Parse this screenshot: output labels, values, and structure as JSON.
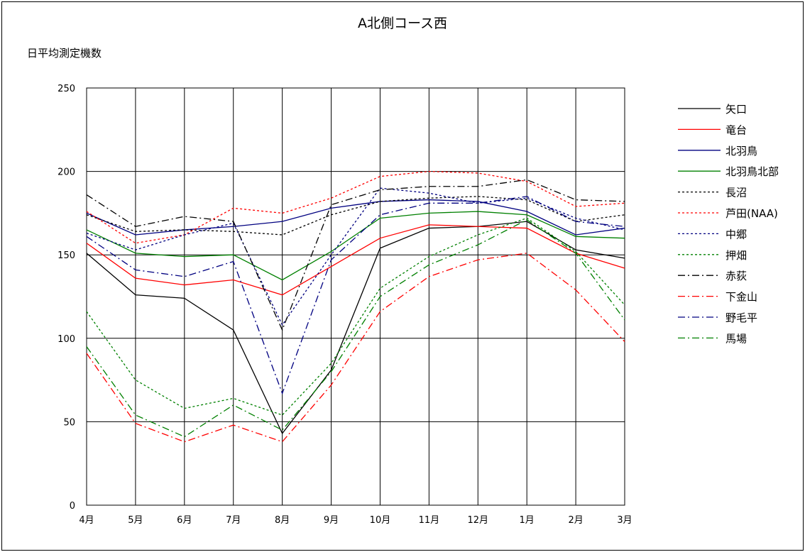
{
  "chart_data": {
    "type": "line",
    "title": "A北側コース西",
    "ylabel": "日平均測定機数",
    "xlabel": "",
    "ylim": [
      0,
      250
    ],
    "yticks": [
      0,
      50,
      100,
      150,
      200,
      250
    ],
    "grid": true,
    "legend_position": "right",
    "categories": [
      "4月",
      "5月",
      "6月",
      "7月",
      "8月",
      "9月",
      "10月",
      "11月",
      "12月",
      "1月",
      "2月",
      "3月"
    ],
    "series": [
      {
        "name": "矢口",
        "color": "#000000",
        "dash": "solid",
        "values": [
          151,
          126,
          124,
          105,
          43,
          81,
          154,
          166,
          167,
          170,
          153,
          148
        ]
      },
      {
        "name": "竜台",
        "color": "#ff0000",
        "dash": "solid",
        "values": [
          157,
          136,
          132,
          135,
          126,
          143,
          160,
          168,
          167,
          166,
          151,
          142
        ]
      },
      {
        "name": "北羽鳥",
        "color": "#000080",
        "dash": "solid",
        "values": [
          175,
          162,
          165,
          167,
          170,
          178,
          182,
          183,
          182,
          176,
          162,
          166
        ]
      },
      {
        "name": "北羽鳥北部",
        "color": "#008000",
        "dash": "solid",
        "values": [
          165,
          151,
          149,
          150,
          135,
          152,
          172,
          175,
          176,
          174,
          161,
          160
        ]
      },
      {
        "name": "長沼",
        "color": "#000000",
        "dash": "dot",
        "values": [
          174,
          164,
          165,
          164,
          162,
          174,
          182,
          184,
          185,
          183,
          170,
          174
        ]
      },
      {
        "name": "芦田(NAA)",
        "color": "#ff0000",
        "dash": "dot",
        "values": [
          176,
          157,
          162,
          178,
          175,
          184,
          197,
          200,
          199,
          194,
          179,
          181
        ]
      },
      {
        "name": "中郷",
        "color": "#000080",
        "dash": "dot",
        "values": [
          163,
          153,
          162,
          169,
          108,
          150,
          190,
          187,
          181,
          184,
          172,
          165
        ]
      },
      {
        "name": "押畑",
        "color": "#008000",
        "dash": "dot",
        "values": [
          116,
          75,
          58,
          64,
          54,
          85,
          130,
          149,
          162,
          172,
          152,
          120
        ]
      },
      {
        "name": "赤荻",
        "color": "#000000",
        "dash": "dashdot",
        "values": [
          186,
          167,
          173,
          170,
          105,
          180,
          189,
          191,
          191,
          195,
          183,
          182
        ]
      },
      {
        "name": "下金山",
        "color": "#ff0000",
        "dash": "dashdot",
        "values": [
          91,
          49,
          38,
          48,
          38,
          72,
          116,
          137,
          147,
          151,
          129,
          98
        ]
      },
      {
        "name": "野毛平",
        "color": "#000080",
        "dash": "dashdot",
        "values": [
          161,
          141,
          137,
          146,
          67,
          147,
          174,
          181,
          181,
          185,
          170,
          167
        ]
      },
      {
        "name": "馬場",
        "color": "#008000",
        "dash": "dashdot",
        "values": [
          95,
          54,
          41,
          60,
          45,
          80,
          125,
          144,
          156,
          171,
          151,
          111
        ]
      }
    ]
  }
}
